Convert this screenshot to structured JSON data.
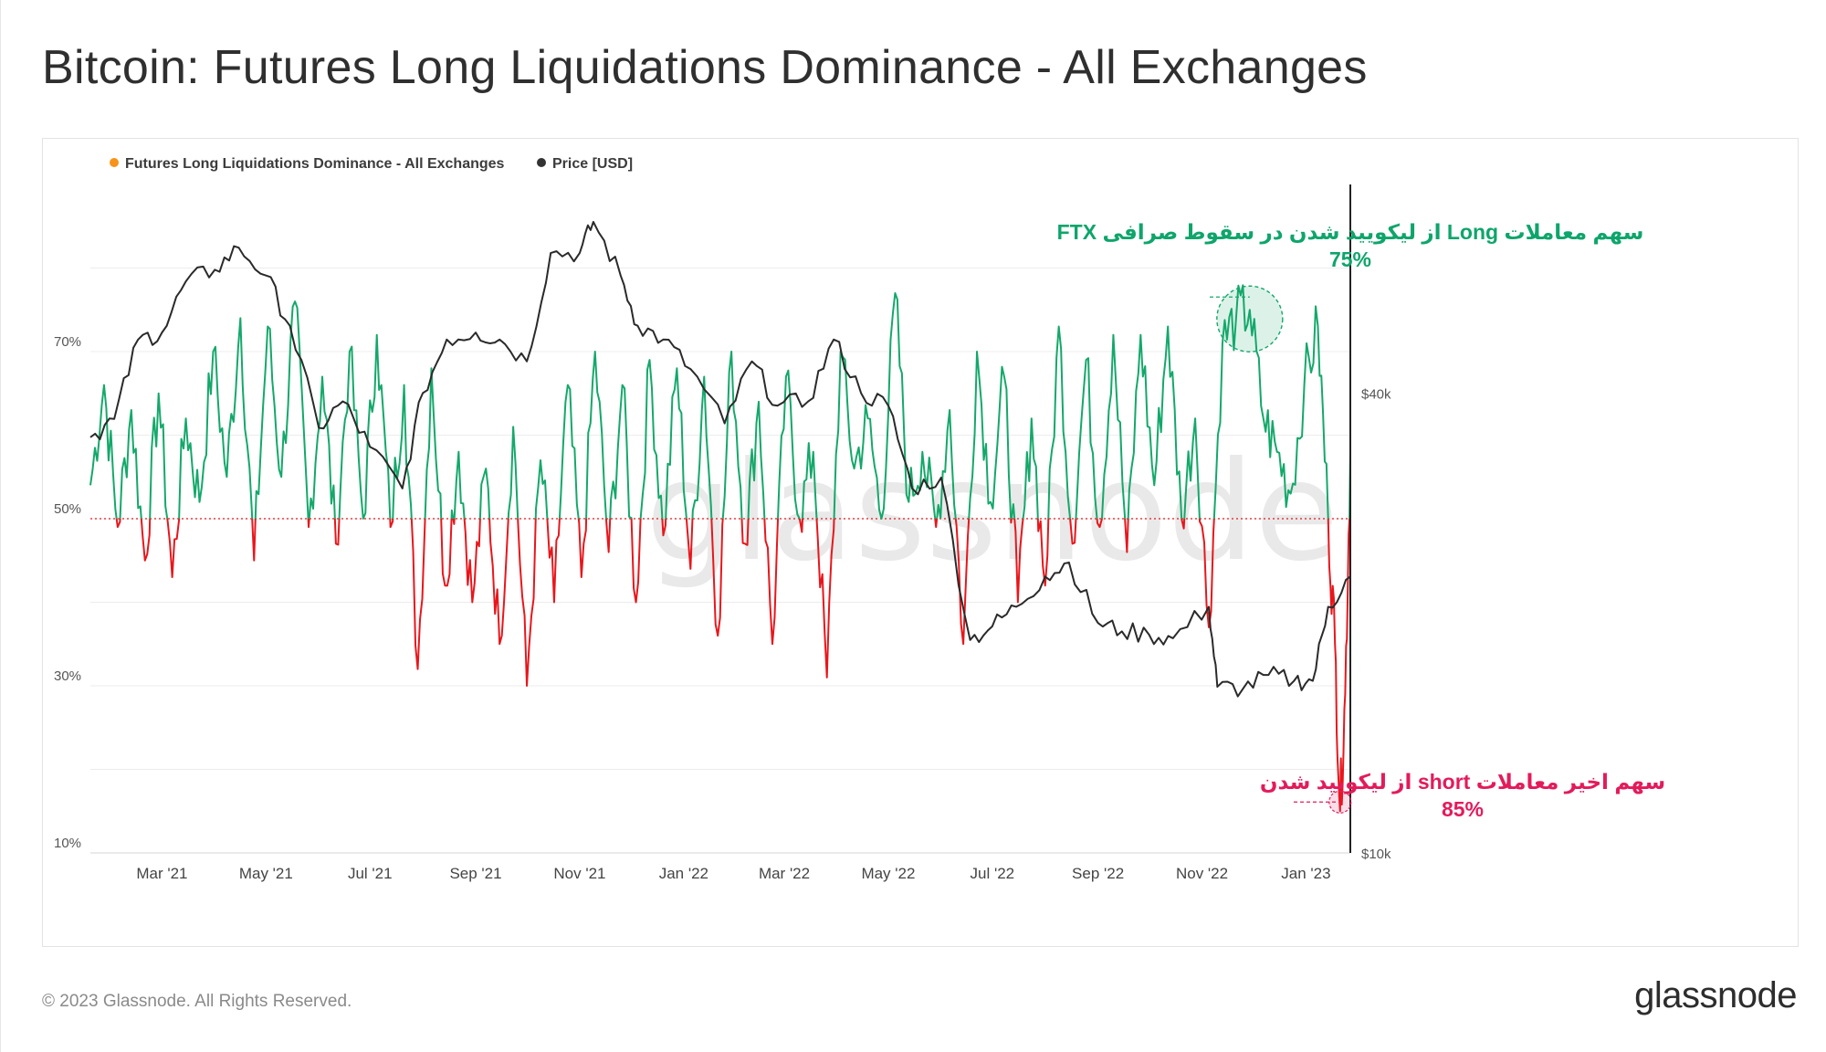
{
  "header": {
    "title": "Bitcoin: Futures Long Liquidations Dominance - All Exchanges"
  },
  "footer": {
    "copyright": "© 2023 Glassnode. All Rights Reserved.",
    "logo_text": "glassnode"
  },
  "watermark": "glassnode",
  "chart_data": {
    "type": "line",
    "title": "Bitcoin: Futures Long Liquidations Dominance - All Exchanges",
    "legend": [
      {
        "name": "Futures Long Liquidations Dominance - All Exchanges",
        "color": "#f7931a"
      },
      {
        "name": "Price [USD]",
        "color": "#333333"
      }
    ],
    "legend_position": "top-left",
    "colors": {
      "above_threshold": "#14a86a",
      "below_threshold": "#e8161b",
      "price": "#2a2a2a",
      "annotation_green": "#0ea56b",
      "annotation_red": "#e31b5b"
    },
    "threshold": 50,
    "x_range": [
      "2021-01-18",
      "2023-01-27"
    ],
    "x_ticks": [
      "Mar '21",
      "May '21",
      "Jul '21",
      "Sep '21",
      "Nov '21",
      "Jan '22",
      "Mar '22",
      "May '22",
      "Jul '22",
      "Sep '22",
      "Nov '22",
      "Jan '23"
    ],
    "y_left": {
      "range": [
        10,
        90
      ],
      "ticks": [
        "70%",
        "50%",
        "30%",
        "10%"
      ],
      "unit": "%"
    },
    "y_right": {
      "scale": "log",
      "range": [
        10000,
        75000
      ],
      "ticks": [
        "$40k",
        "$10k"
      ],
      "unit": "USD"
    },
    "grid": true,
    "series": [
      {
        "name": "Futures Long Liquidations Dominance - All Exchanges",
        "axis": "left",
        "points": [
          [
            "2021-01-18",
            54
          ],
          [
            "2021-01-26",
            66
          ],
          [
            "2021-02-03",
            49
          ],
          [
            "2021-02-11",
            63
          ],
          [
            "2021-02-19",
            45
          ],
          [
            "2021-02-27",
            65
          ],
          [
            "2021-03-07",
            43
          ],
          [
            "2021-03-15",
            62
          ],
          [
            "2021-03-23",
            52
          ],
          [
            "2021-03-31",
            70
          ],
          [
            "2021-04-08",
            55
          ],
          [
            "2021-04-16",
            74
          ],
          [
            "2021-04-24",
            45
          ],
          [
            "2021-05-02",
            73
          ],
          [
            "2021-05-10",
            55
          ],
          [
            "2021-05-18",
            76
          ],
          [
            "2021-05-26",
            49
          ],
          [
            "2021-06-03",
            67
          ],
          [
            "2021-06-11",
            47
          ],
          [
            "2021-06-19",
            70
          ],
          [
            "2021-06-27",
            50
          ],
          [
            "2021-07-05",
            72
          ],
          [
            "2021-07-13",
            49
          ],
          [
            "2021-07-21",
            66
          ],
          [
            "2021-07-29",
            32
          ],
          [
            "2021-08-06",
            68
          ],
          [
            "2021-08-14",
            42
          ],
          [
            "2021-08-22",
            58
          ],
          [
            "2021-08-30",
            40
          ],
          [
            "2021-09-07",
            56
          ],
          [
            "2021-09-15",
            35
          ],
          [
            "2021-09-23",
            61
          ],
          [
            "2021-10-01",
            30
          ],
          [
            "2021-10-09",
            57
          ],
          [
            "2021-10-17",
            40
          ],
          [
            "2021-10-25",
            66
          ],
          [
            "2021-11-02",
            43
          ],
          [
            "2021-11-10",
            70
          ],
          [
            "2021-11-18",
            46
          ],
          [
            "2021-11-26",
            66
          ],
          [
            "2021-12-04",
            40
          ],
          [
            "2021-12-12",
            69
          ],
          [
            "2021-12-20",
            48
          ],
          [
            "2021-12-28",
            68
          ],
          [
            "2022-01-05",
            44
          ],
          [
            "2022-01-13",
            67
          ],
          [
            "2022-01-21",
            36
          ],
          [
            "2022-01-29",
            70
          ],
          [
            "2022-02-06",
            47
          ],
          [
            "2022-02-14",
            64
          ],
          [
            "2022-02-22",
            35
          ],
          [
            "2022-03-02",
            67
          ],
          [
            "2022-03-10",
            50
          ],
          [
            "2022-03-18",
            58
          ],
          [
            "2022-03-26",
            31
          ],
          [
            "2022-04-03",
            70
          ],
          [
            "2022-04-11",
            56
          ],
          [
            "2022-04-19",
            62
          ],
          [
            "2022-04-27",
            50
          ],
          [
            "2022-05-05",
            77
          ],
          [
            "2022-05-13",
            52
          ],
          [
            "2022-05-21",
            58
          ],
          [
            "2022-05-29",
            49
          ],
          [
            "2022-06-06",
            63
          ],
          [
            "2022-06-14",
            35
          ],
          [
            "2022-06-22",
            70
          ],
          [
            "2022-06-30",
            52
          ],
          [
            "2022-07-08",
            67
          ],
          [
            "2022-07-16",
            40
          ],
          [
            "2022-07-24",
            62
          ],
          [
            "2022-08-01",
            42
          ],
          [
            "2022-08-09",
            73
          ],
          [
            "2022-08-17",
            47
          ],
          [
            "2022-08-25",
            69
          ],
          [
            "2022-09-02",
            49
          ],
          [
            "2022-09-10",
            72
          ],
          [
            "2022-09-18",
            46
          ],
          [
            "2022-09-26",
            72
          ],
          [
            "2022-10-04",
            54
          ],
          [
            "2022-10-12",
            73
          ],
          [
            "2022-10-20",
            50
          ],
          [
            "2022-10-28",
            62
          ],
          [
            "2022-11-05",
            37
          ],
          [
            "2022-11-13",
            71
          ],
          [
            "2022-11-21",
            74
          ],
          [
            "2022-11-29",
            75
          ],
          [
            "2022-12-07",
            62
          ],
          [
            "2022-12-15",
            58
          ],
          [
            "2022-12-23",
            53
          ],
          [
            "2022-12-31",
            66
          ],
          [
            "2023-01-08",
            73
          ],
          [
            "2023-01-14",
            50
          ],
          [
            "2023-01-18",
            35
          ],
          [
            "2023-01-21",
            15
          ],
          [
            "2023-01-24",
            29
          ],
          [
            "2023-01-27",
            58
          ]
        ]
      },
      {
        "name": "Price [USD]",
        "axis": "right",
        "points": [
          [
            "2021-01-18",
            35000
          ],
          [
            "2021-02-01",
            37000
          ],
          [
            "2021-02-15",
            47000
          ],
          [
            "2021-03-01",
            48000
          ],
          [
            "2021-03-15",
            56000
          ],
          [
            "2021-04-01",
            58000
          ],
          [
            "2021-04-15",
            62000
          ],
          [
            "2021-05-01",
            57000
          ],
          [
            "2021-05-15",
            49000
          ],
          [
            "2021-06-01",
            36000
          ],
          [
            "2021-06-15",
            39000
          ],
          [
            "2021-07-01",
            34000
          ],
          [
            "2021-07-20",
            30000
          ],
          [
            "2021-08-01",
            40000
          ],
          [
            "2021-08-15",
            47000
          ],
          [
            "2021-09-01",
            48000
          ],
          [
            "2021-09-15",
            47000
          ],
          [
            "2021-10-01",
            44000
          ],
          [
            "2021-10-15",
            61000
          ],
          [
            "2021-11-01",
            61000
          ],
          [
            "2021-11-09",
            67000
          ],
          [
            "2021-11-25",
            57000
          ],
          [
            "2021-12-05",
            49000
          ],
          [
            "2021-12-20",
            47000
          ],
          [
            "2022-01-05",
            43000
          ],
          [
            "2022-01-25",
            36500
          ],
          [
            "2022-02-10",
            44000
          ],
          [
            "2022-02-25",
            38500
          ],
          [
            "2022-03-15",
            39000
          ],
          [
            "2022-03-30",
            47000
          ],
          [
            "2022-04-15",
            40000
          ],
          [
            "2022-05-01",
            38500
          ],
          [
            "2022-05-15",
            30000
          ],
          [
            "2022-06-01",
            31000
          ],
          [
            "2022-06-18",
            19000
          ],
          [
            "2022-07-01",
            19800
          ],
          [
            "2022-07-15",
            21000
          ],
          [
            "2022-08-01",
            23000
          ],
          [
            "2022-08-15",
            24000
          ],
          [
            "2022-09-01",
            20000
          ],
          [
            "2022-09-15",
            19500
          ],
          [
            "2022-10-01",
            19300
          ],
          [
            "2022-10-15",
            19100
          ],
          [
            "2022-11-05",
            21000
          ],
          [
            "2022-11-10",
            16500
          ],
          [
            "2022-11-25",
            16400
          ],
          [
            "2022-12-10",
            17100
          ],
          [
            "2022-12-25",
            16800
          ],
          [
            "2023-01-05",
            16800
          ],
          [
            "2023-01-14",
            21000
          ],
          [
            "2023-01-27",
            23000
          ]
        ]
      }
    ],
    "annotations": [
      {
        "text": "سهم معاملات  Long از لیکویید شدن در سقوط صرافی FTX",
        "value": "75%",
        "date": "2022-11-29",
        "y": 75,
        "color": "green"
      },
      {
        "text": "سهم اخیر معاملات short از لیکویید شدن",
        "value": "85%",
        "date": "2023-01-21",
        "y": 15,
        "color": "red"
      }
    ]
  }
}
